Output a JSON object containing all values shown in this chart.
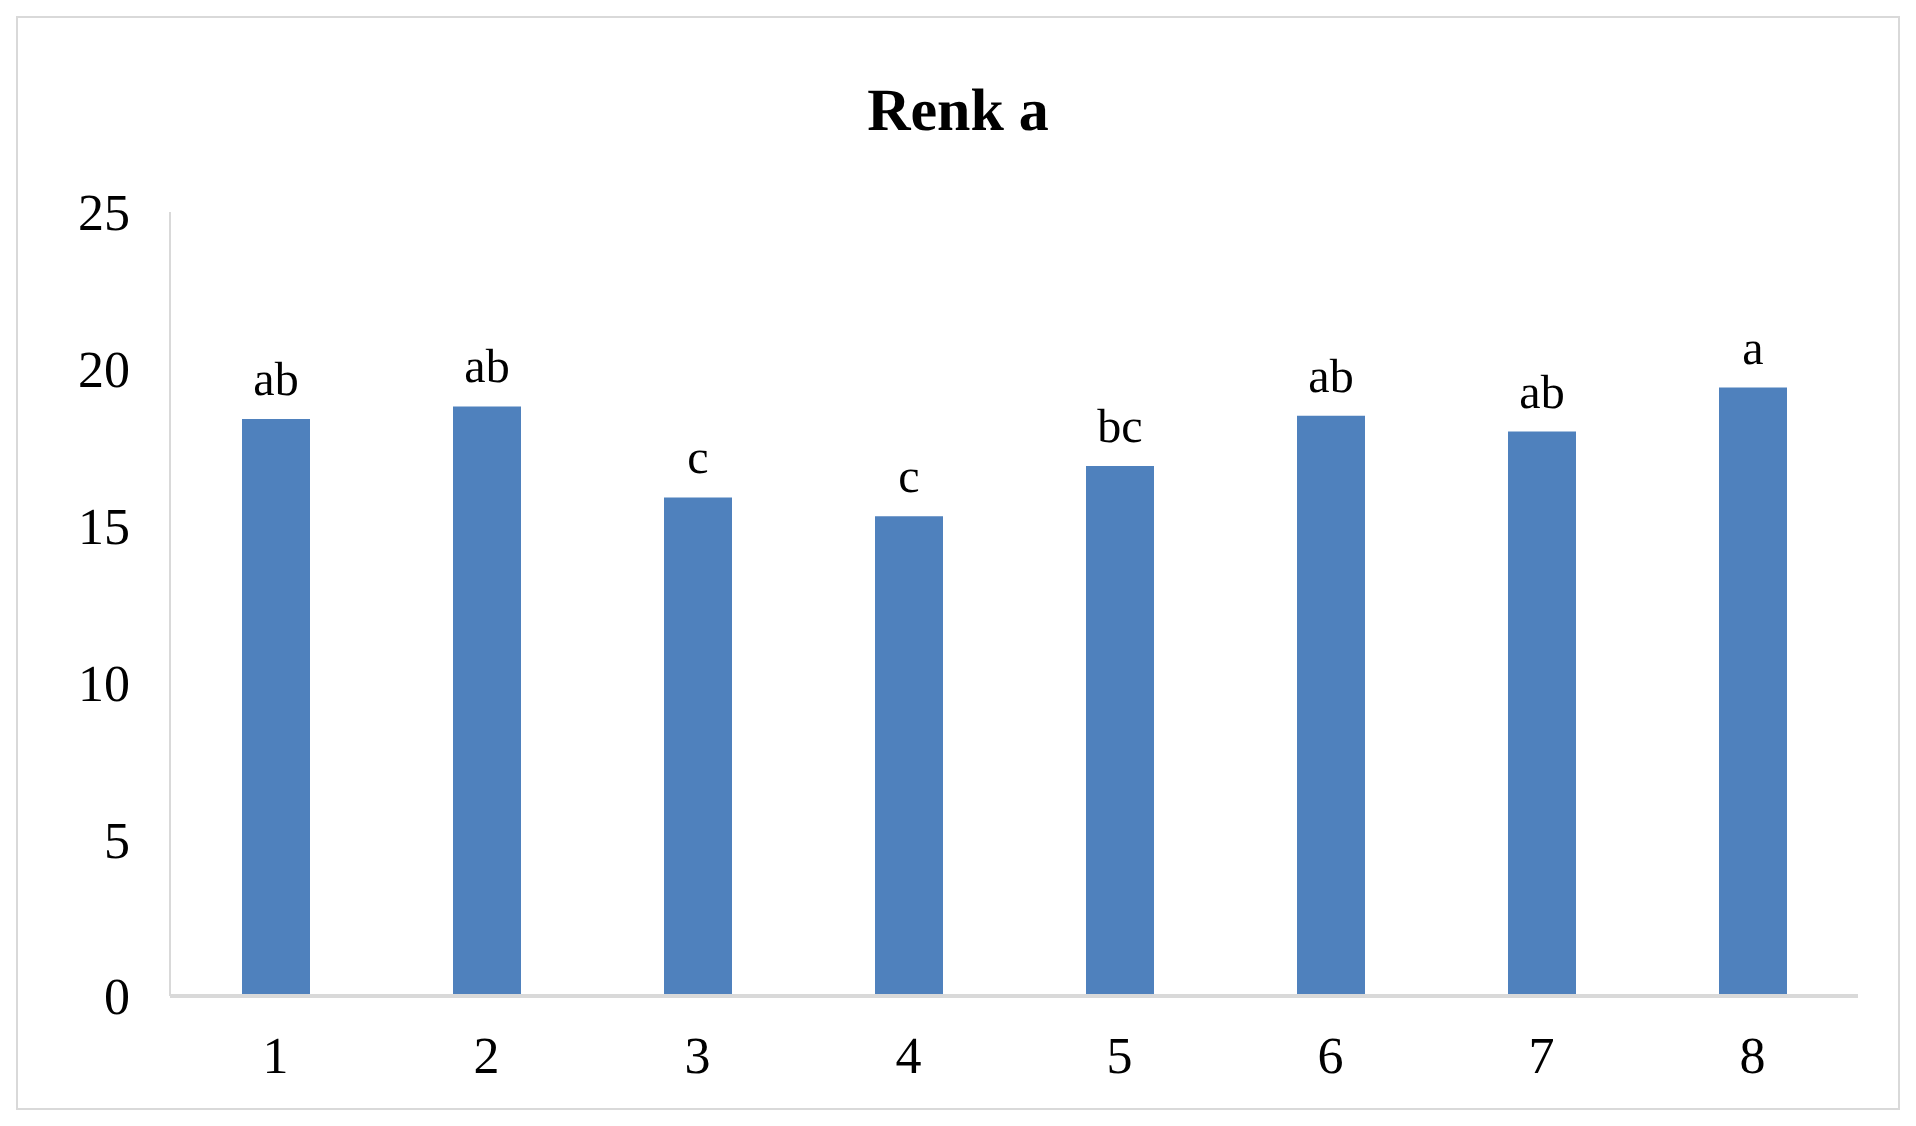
{
  "chart_data": {
    "type": "bar",
    "title": "Renk a",
    "categories": [
      "1",
      "2",
      "3",
      "4",
      "5",
      "6",
      "7",
      "8"
    ],
    "values": [
      18.4,
      18.8,
      15.9,
      15.3,
      16.9,
      18.5,
      18.0,
      19.4
    ],
    "value_labels": [
      "ab",
      "ab",
      "c",
      "c",
      "bc",
      "ab",
      "ab",
      "a"
    ],
    "color": "#4f81bd",
    "ylim": [
      0,
      25
    ],
    "yticks": [
      0,
      5,
      10,
      15,
      20,
      25
    ],
    "grid": false,
    "legend": false
  }
}
